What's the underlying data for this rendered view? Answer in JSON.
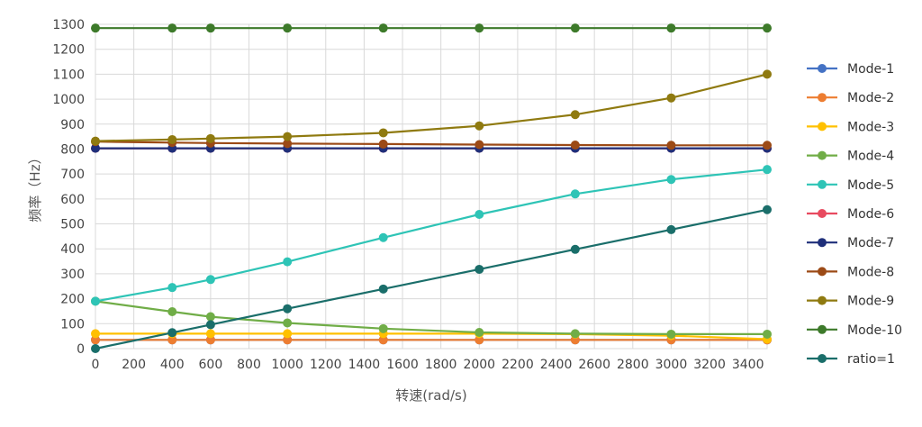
{
  "chart_data": {
    "type": "line",
    "xlabel": "转速(rad/s)",
    "ylabel": "频率（Hz）",
    "xlim": [
      0,
      3500
    ],
    "ylim": [
      0,
      1300
    ],
    "x_ticks": [
      "0",
      "200",
      "400",
      "600",
      "800",
      "1000",
      "1200",
      "1400",
      "1600",
      "1800",
      "2000",
      "2200",
      "2400",
      "2600",
      "2800",
      "3000",
      "3200",
      "3400"
    ],
    "y_ticks": [
      "0",
      "100",
      "200",
      "300",
      "400",
      "500",
      "600",
      "700",
      "800",
      "900",
      "1000",
      "1100",
      "1200",
      "1300"
    ],
    "grid": true,
    "legend_position": "right",
    "x": [
      0,
      400,
      600,
      1000,
      1500,
      2000,
      2500,
      3000,
      3500
    ],
    "series": [
      {
        "name": "Mode-1",
        "color": "#4472c4",
        "values": [
          35,
          35,
          35,
          35,
          35,
          35,
          35,
          35,
          35
        ]
      },
      {
        "name": "Mode-2",
        "color": "#ed7d31",
        "values": [
          35,
          35,
          35,
          35,
          35,
          35,
          35,
          35,
          35
        ]
      },
      {
        "name": "Mode-3",
        "color": "#ffc000",
        "values": [
          60,
          60,
          60,
          60,
          60,
          60,
          58,
          52,
          38
        ]
      },
      {
        "name": "Mode-4",
        "color": "#70ad47",
        "values": [
          190,
          148,
          128,
          103,
          80,
          65,
          60,
          58,
          58
        ]
      },
      {
        "name": "Mode-5",
        "color": "#2ec4b6",
        "values": [
          190,
          245,
          277,
          348,
          445,
          538,
          620,
          678,
          718
        ]
      },
      {
        "name": "Mode-6",
        "color": "#e84a5f",
        "values": [
          803,
          803,
          803,
          803,
          803,
          803,
          803,
          803,
          803
        ]
      },
      {
        "name": "Mode-7",
        "color": "#1f2f7a",
        "values": [
          803,
          803,
          803,
          803,
          803,
          803,
          803,
          803,
          803
        ]
      },
      {
        "name": "Mode-8",
        "color": "#9c4a16",
        "values": [
          830,
          826,
          824,
          822,
          820,
          818,
          816,
          815,
          815
        ]
      },
      {
        "name": "Mode-9",
        "color": "#8f7a10",
        "values": [
          832,
          838,
          842,
          850,
          865,
          893,
          938,
          1005,
          1100
        ]
      },
      {
        "name": "Mode-10",
        "color": "#3d7a2a",
        "values": [
          1285,
          1285,
          1285,
          1285,
          1285,
          1285,
          1285,
          1285,
          1285
        ]
      },
      {
        "name": "ratio=1",
        "color": "#1a6e6a",
        "values": [
          0,
          64,
          96,
          160,
          239,
          318,
          398,
          477,
          557
        ]
      }
    ]
  }
}
